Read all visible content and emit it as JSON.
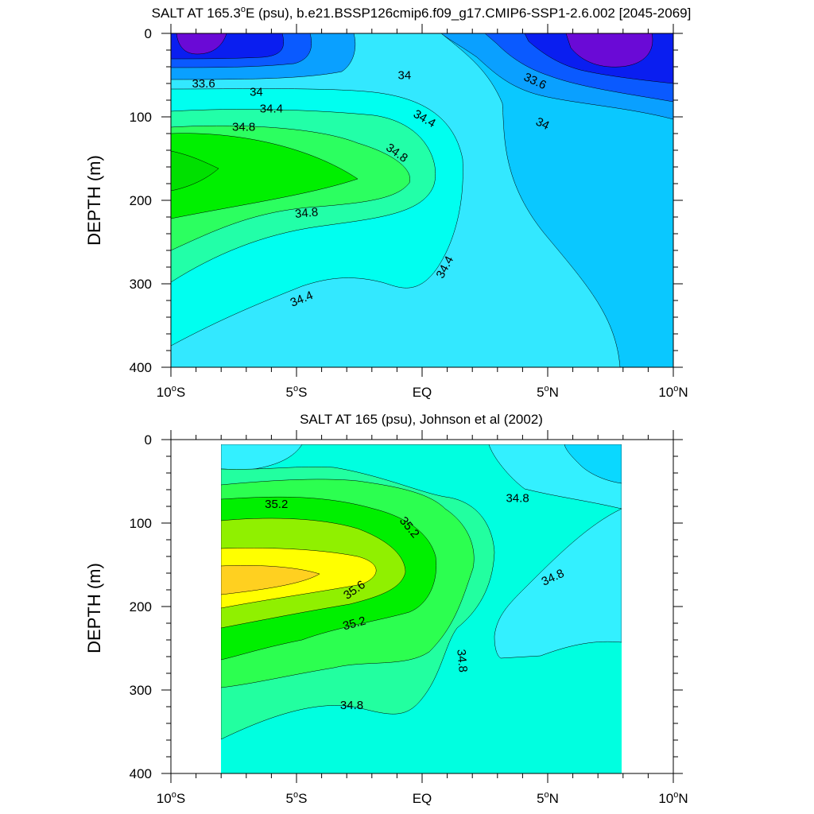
{
  "chart_data": [
    {
      "type": "contour",
      "title_main": "SALT AT 165.3",
      "title_deg": "o",
      "title_rest": "E (psu), b.e21.BSSP126cmip6.f09_g17.CMIP6-SSP1-2.6.002 [2045-2069]",
      "ylabel": "DEPTH (m)",
      "xlim": [
        -10,
        10
      ],
      "ylim": [
        400,
        0
      ],
      "y_ticks": [
        "0",
        "100",
        "200",
        "300",
        "400"
      ],
      "x_ticks": [
        {
          "num": "10",
          "deg": "o",
          "hem": "S"
        },
        {
          "num": "5",
          "deg": "o",
          "hem": "S"
        },
        {
          "num": "EQ",
          "deg": "",
          "hem": ""
        },
        {
          "num": "5",
          "deg": "o",
          "hem": "N"
        },
        {
          "num": "10",
          "deg": "o",
          "hem": "N"
        }
      ],
      "data_lat_range": [
        -10,
        10
      ],
      "levels": [
        32.8,
        33.2,
        33.6,
        34.0,
        34.2,
        34.4,
        34.6,
        34.8,
        35.0
      ],
      "colors": [
        "#6a0ad6",
        "#0a1ef0",
        "#0a5aff",
        "#0aa0ff",
        "#0ac8ff",
        "#33e8ff",
        "#00fff0",
        "#22ffa8",
        "#2cff60",
        "#00f000"
      ],
      "contour_labels": [
        {
          "text": "33.6",
          "lat": -8.7,
          "depth": 60,
          "rot": 0
        },
        {
          "text": "34",
          "lat": -6.6,
          "depth": 70,
          "rot": 0
        },
        {
          "text": "34.4",
          "lat": -6.0,
          "depth": 90,
          "rot": 0
        },
        {
          "text": "34.8",
          "lat": -7.1,
          "depth": 112,
          "rot": 0
        },
        {
          "text": "34",
          "lat": -0.7,
          "depth": 50,
          "rot": 0
        },
        {
          "text": "34.4",
          "lat": 0.1,
          "depth": 102,
          "rot": 30
        },
        {
          "text": "34.8",
          "lat": -1.0,
          "depth": 143,
          "rot": 35
        },
        {
          "text": "34.8",
          "lat": -4.6,
          "depth": 215,
          "rot": -5
        },
        {
          "text": "34.4",
          "lat": 0.9,
          "depth": 280,
          "rot": -62
        },
        {
          "text": "34.4",
          "lat": -4.8,
          "depth": 318,
          "rot": -22
        },
        {
          "text": "33.6",
          "lat": 4.5,
          "depth": 57,
          "rot": 25
        },
        {
          "text": "34",
          "lat": 4.8,
          "depth": 108,
          "rot": 25
        }
      ]
    },
    {
      "type": "contour",
      "title_main": "SALT AT 165 (psu), Johnson et al (2002)",
      "title_deg": "",
      "title_rest": "",
      "ylabel": "DEPTH (m)",
      "xlim": [
        -10,
        10
      ],
      "ylim": [
        400,
        0
      ],
      "y_ticks": [
        "0",
        "100",
        "200",
        "300",
        "400"
      ],
      "x_ticks": [
        {
          "num": "10",
          "deg": "o",
          "hem": "S"
        },
        {
          "num": "5",
          "deg": "o",
          "hem": "S"
        },
        {
          "num": "EQ",
          "deg": "",
          "hem": ""
        },
        {
          "num": "5",
          "deg": "o",
          "hem": "N"
        },
        {
          "num": "10",
          "deg": "o",
          "hem": "N"
        }
      ],
      "data_lat_range": [
        -8,
        8
      ],
      "levels": [
        34.4,
        34.6,
        34.8,
        35.0,
        35.2,
        35.4,
        35.6,
        35.8
      ],
      "colors": [
        "#0ad8ff",
        "#33f0ff",
        "#00ffe0",
        "#22ffa0",
        "#2cff50",
        "#00f000",
        "#90f000",
        "#ffff00",
        "#ffd020"
      ],
      "contour_labels": [
        {
          "text": "35.2",
          "lat": -5.8,
          "depth": 77,
          "rot": 0
        },
        {
          "text": "35.2",
          "lat": -0.5,
          "depth": 105,
          "rot": 50
        },
        {
          "text": "34.8",
          "lat": 3.8,
          "depth": 70,
          "rot": 0
        },
        {
          "text": "35.6",
          "lat": -2.7,
          "depth": 180,
          "rot": -35
        },
        {
          "text": "35.2",
          "lat": -2.7,
          "depth": 220,
          "rot": -15
        },
        {
          "text": "34.8",
          "lat": 5.2,
          "depth": 165,
          "rot": -25
        },
        {
          "text": "34.8",
          "lat": 1.6,
          "depth": 265,
          "rot": 85
        },
        {
          "text": "34.8",
          "lat": -2.8,
          "depth": 318,
          "rot": 0
        }
      ]
    }
  ]
}
